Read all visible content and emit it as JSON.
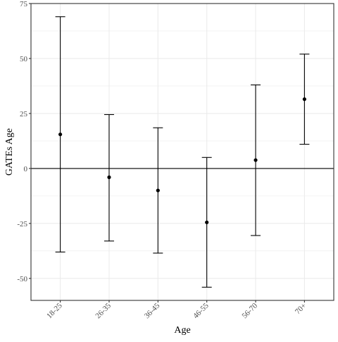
{
  "chart_data": {
    "type": "scatter",
    "style": "point-with-error-bars",
    "xlabel": "Age",
    "ylabel": "GATEs Age",
    "categories": [
      "18-25",
      "26-35",
      "36-45",
      "46-55",
      "56-70",
      "70+"
    ],
    "series": [
      {
        "estimate": [
          15.5,
          -4.0,
          -10.0,
          -24.5,
          3.8,
          31.5
        ],
        "lower": [
          -38.0,
          -33.0,
          -38.5,
          -54.0,
          -30.5,
          11.0
        ],
        "upper": [
          69.0,
          24.5,
          18.5,
          5.0,
          38.0,
          52.0
        ]
      }
    ],
    "ylim": [
      -60,
      75
    ],
    "yticks": [
      -50,
      -25,
      0,
      25,
      50,
      75
    ],
    "reference_line": 0,
    "grid": true,
    "legend": "none",
    "colors": {
      "points": "#000000",
      "error_bars": "#000000",
      "grid": "#ebebeb",
      "panel_border": "#333333",
      "tick_text": "#4d4d4d"
    }
  }
}
